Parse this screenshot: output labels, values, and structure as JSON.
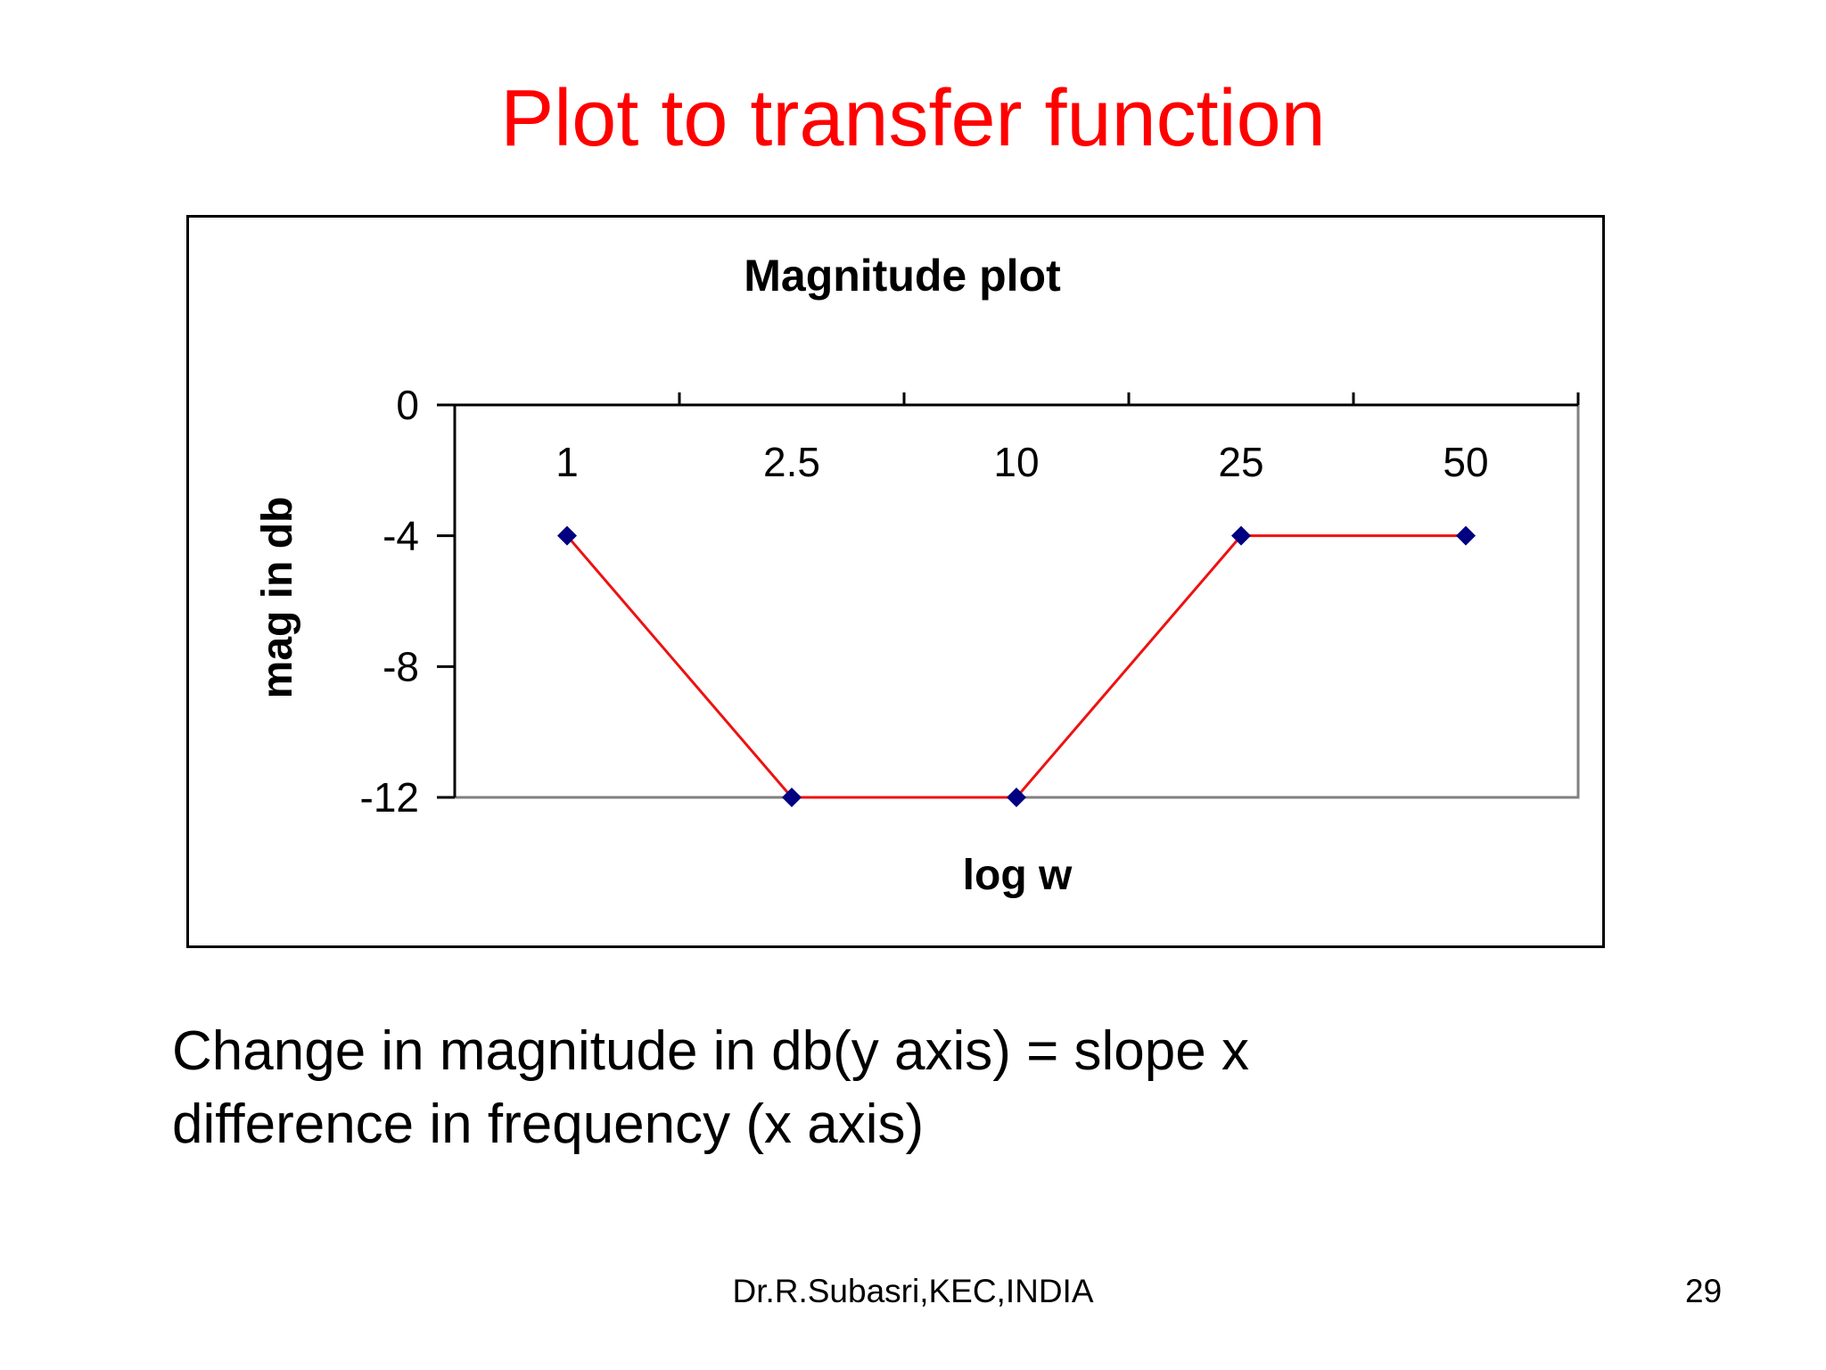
{
  "slide": {
    "title": "Plot to transfer function",
    "body_lines": [
      "Change in magnitude in db(y axis) = slope x",
      "difference in frequency (x axis)"
    ],
    "footer": "Dr.R.Subasri,KEC,INDIA",
    "page_number": "29"
  },
  "chart_data": {
    "type": "line",
    "title": "Magnitude plot",
    "xlabel": "log w",
    "ylabel": "mag in db",
    "categories": [
      "1",
      "2.5",
      "10",
      "25",
      "50"
    ],
    "series": [
      {
        "values": [
          -4,
          -12,
          -12,
          -4,
          -4
        ]
      }
    ],
    "ylim": [
      -12,
      0
    ],
    "yticks": [
      "0",
      "-4",
      "-8",
      "-12"
    ],
    "grid": false,
    "legend": "none",
    "colors": {
      "line": "#ee1111",
      "marker": "#000080",
      "axis": "#000000",
      "plot_border": "#808080"
    }
  }
}
